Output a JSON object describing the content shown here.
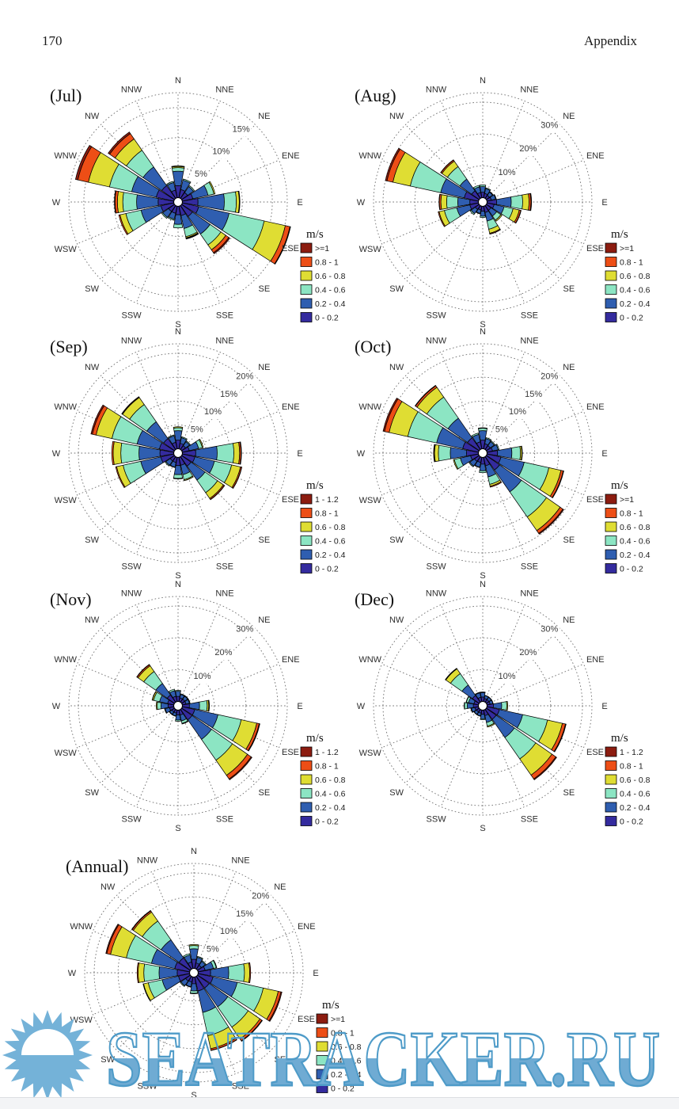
{
  "page": {
    "number": "170",
    "header_right": "Appendix"
  },
  "watermark": {
    "text": "SEATRACKER.RU",
    "fill_color": "#6fabd3",
    "outline_color": "#4e9bc8",
    "sun_color": "#74b2d8"
  },
  "legend_title": "m/s",
  "legend_side_label": "ESE",
  "speed_bin_colors_inner_to_outer": [
    "#342b9e",
    "#2f5eb0",
    "#8ce5c3",
    "#dfdd33",
    "#ed4e16",
    "#8c1c10"
  ],
  "chart_data": [
    {
      "id": "jul",
      "type": "windrose",
      "title": "(Jul)",
      "units": "m/s",
      "rings_pct": [
        5,
        10,
        15
      ],
      "ring_labels": [
        "5%",
        "10%",
        "15%"
      ],
      "outer_max_pct": 17.5,
      "legend_top_to_bottom": [
        ">=1",
        "0.8 - 1",
        "0.6 - 0.8",
        "0.4 - 0.6",
        "0.2 - 0.4",
        "0 - 0.2"
      ],
      "bins_inner_to_outer": [
        "0 - 0.2",
        "0.2 - 0.4",
        "0.4 - 0.6",
        "0.6 - 0.8",
        "0.8 - 1",
        ">=1"
      ],
      "directions": [
        "N",
        "NNE",
        "NE",
        "ENE",
        "E",
        "ESE",
        "SE",
        "SSE",
        "S",
        "SSW",
        "SW",
        "WSW",
        "W",
        "WNW",
        "NW",
        "NNW"
      ],
      "frequencies_pct": [
        [
          2.0,
          2.4,
          0.6,
          0.2,
          0.1,
          0
        ],
        [
          1.4,
          1.6,
          0.2,
          0,
          0,
          0
        ],
        [
          1.2,
          1.2,
          0.2,
          0,
          0,
          0
        ],
        [
          1.8,
          2.6,
          1.0,
          0.2,
          0,
          0
        ],
        [
          2.6,
          4.4,
          2.0,
          0.5,
          0.1,
          0
        ],
        [
          2.8,
          5.2,
          6.0,
          3.6,
          0.8,
          0.1
        ],
        [
          2.2,
          3.6,
          2.2,
          1.0,
          0.6,
          0.2
        ],
        [
          1.6,
          2.2,
          1.4,
          0.2,
          0.1,
          0.1
        ],
        [
          1.4,
          1.6,
          0.6,
          0,
          0,
          0
        ],
        [
          1.2,
          1.0,
          0.2,
          0,
          0,
          0
        ],
        [
          1.2,
          1.2,
          0.2,
          0,
          0,
          0
        ],
        [
          2.2,
          3.4,
          2.6,
          1.0,
          0.2,
          0
        ],
        [
          2.6,
          3.6,
          2.3,
          0.9,
          0.4,
          0.1
        ],
        [
          3.0,
          4.2,
          3.8,
          3.6,
          1.8,
          0.4
        ],
        [
          2.6,
          3.8,
          3.4,
          2.3,
          1.1,
          0.3
        ],
        [
          1.3,
          1.3,
          0.2,
          0,
          0,
          0
        ]
      ]
    },
    {
      "id": "aug",
      "type": "windrose",
      "title": "(Aug)",
      "units": "m/s",
      "rings_pct": [
        10,
        20,
        30
      ],
      "ring_labels": [
        "10%",
        "20%",
        "30%"
      ],
      "outer_max_pct": 33,
      "legend_top_to_bottom": [
        ">=1",
        "0.8 - 1",
        "0.6 - 0.8",
        "0.4 - 0.6",
        "0.2 - 0.4",
        "0 - 0.2"
      ],
      "bins_inner_to_outer": [
        "0 - 0.2",
        "0.2 - 0.4",
        "0.4 - 0.6",
        "0.6 - 0.8",
        "0.8 - 1",
        ">=1"
      ],
      "directions": [
        "N",
        "NNE",
        "NE",
        "ENE",
        "E",
        "ESE",
        "SE",
        "SSE",
        "S",
        "SSW",
        "SW",
        "WSW",
        "W",
        "WNW",
        "NW",
        "NNW"
      ],
      "frequencies_pct": [
        [
          1.7,
          1.8,
          0.5,
          0,
          0,
          0
        ],
        [
          1.4,
          1.5,
          0.3,
          0,
          0,
          0
        ],
        [
          1.2,
          1.2,
          0.2,
          0,
          0,
          0
        ],
        [
          1.4,
          1.4,
          0.2,
          0,
          0,
          0
        ],
        [
          3.0,
          4.6,
          3.6,
          2.0,
          0.6,
          0.2
        ],
        [
          2.3,
          3.2,
          2.9,
          2.0,
          0.5,
          0.1
        ],
        [
          1.8,
          2.2,
          1.6,
          0.4,
          0,
          0
        ],
        [
          2.0,
          2.8,
          2.6,
          1.3,
          0.25,
          0.05
        ],
        [
          1.5,
          1.6,
          0.4,
          0,
          0,
          0
        ],
        [
          1.2,
          1.1,
          0.2,
          0,
          0,
          0
        ],
        [
          1.5,
          1.6,
          0.4,
          0,
          0,
          0
        ],
        [
          2.8,
          4.2,
          4.0,
          1.7,
          0.3,
          0
        ],
        [
          2.7,
          3.8,
          3.5,
          1.8,
          0.5,
          0.1
        ],
        [
          4.6,
          7.6,
          9.8,
          5.6,
          1.9,
          0.5
        ],
        [
          2.9,
          4.5,
          4.8,
          2.1,
          0.4,
          0.1
        ],
        [
          1.7,
          1.8,
          0.5,
          0,
          0,
          0
        ]
      ]
    },
    {
      "id": "sep",
      "type": "windrose",
      "title": "(Sep)",
      "units": "m/s",
      "rings_pct": [
        5,
        10,
        15,
        20
      ],
      "ring_labels": [
        "5%",
        "10%",
        "15%",
        "20%"
      ],
      "outer_max_pct": 22,
      "legend_top_to_bottom": [
        "1 - 1.2",
        "0.8 - 1",
        "0.6 - 0.8",
        "0.4 - 0.6",
        "0.2 - 0.4",
        "0 - 0.2"
      ],
      "bins_inner_to_outer": [
        "0 - 0.2",
        "0.2 - 0.4",
        "0.4 - 0.6",
        "0.6 - 0.8",
        "0.8 - 1",
        "1 - 1.2"
      ],
      "directions": [
        "N",
        "NNE",
        "NE",
        "ENE",
        "E",
        "ESE",
        "SE",
        "SSE",
        "S",
        "SSW",
        "SW",
        "WSW",
        "W",
        "WNW",
        "NW",
        "NNW"
      ],
      "frequencies_pct": [
        [
          1.8,
          2.0,
          0.6,
          0.2,
          0,
          0
        ],
        [
          1.2,
          1.2,
          0.2,
          0,
          0,
          0
        ],
        [
          1.0,
          1.0,
          0.2,
          0,
          0,
          0
        ],
        [
          1.5,
          2.0,
          0.8,
          0.2,
          0,
          0
        ],
        [
          2.8,
          4.5,
          3.5,
          1.2,
          0.3,
          0.1
        ],
        [
          2.7,
          4.2,
          3.7,
          1.9,
          0.25,
          0.05
        ],
        [
          2.4,
          3.6,
          3.2,
          1.5,
          0.25,
          0.05
        ],
        [
          1.7,
          2.0,
          1.1,
          0.2,
          0,
          0
        ],
        [
          1.7,
          1.9,
          0.8,
          0.1,
          0,
          0
        ],
        [
          1.1,
          1.0,
          0.1,
          0,
          0,
          0
        ],
        [
          1.1,
          1.1,
          0.2,
          0,
          0,
          0
        ],
        [
          2.8,
          4.3,
          3.8,
          1.4,
          0.2,
          0
        ],
        [
          2.9,
          4.4,
          3.8,
          1.6,
          0.3,
          0
        ],
        [
          3.1,
          4.8,
          5.4,
          3.4,
          0.8,
          0.3
        ],
        [
          2.8,
          4.3,
          4.4,
          1.8,
          0.15,
          0.05
        ],
        [
          1.4,
          1.4,
          0.2,
          0,
          0,
          0
        ]
      ]
    },
    {
      "id": "oct",
      "type": "windrose",
      "title": "(Oct)",
      "units": "m/s",
      "rings_pct": [
        5,
        10,
        15,
        20
      ],
      "ring_labels": [
        "5%",
        "10%",
        "15%",
        "20%"
      ],
      "outer_max_pct": 22,
      "legend_top_to_bottom": [
        ">=1",
        "0.8 - 1",
        "0.6 - 0.8",
        "0.4 - 0.6",
        "0.2 - 0.4",
        "0 - 0.2"
      ],
      "bins_inner_to_outer": [
        "0 - 0.2",
        "0.2 - 0.4",
        "0.4 - 0.6",
        "0.6 - 0.8",
        "0.8 - 1",
        ">=1"
      ],
      "directions": [
        "N",
        "NNE",
        "NE",
        "ENE",
        "E",
        "ESE",
        "SE",
        "SSE",
        "S",
        "SSW",
        "SW",
        "WSW",
        "W",
        "WNW",
        "NW",
        "NNW"
      ],
      "frequencies_pct": [
        [
          1.8,
          2.0,
          0.5,
          0.1,
          0,
          0
        ],
        [
          1.1,
          1.1,
          0.2,
          0,
          0,
          0
        ],
        [
          1.0,
          1.0,
          0.2,
          0,
          0,
          0
        ],
        [
          1.2,
          1.2,
          0.2,
          0,
          0,
          0
        ],
        [
          2.2,
          3.0,
          1.8,
          0.3,
          0.1,
          0
        ],
        [
          3.0,
          5.0,
          5.3,
          2.6,
          0.5,
          0.1
        ],
        [
          3.4,
          5.6,
          6.4,
          3.5,
          0.7,
          0.2
        ],
        [
          1.8,
          2.4,
          1.6,
          0.4,
          0.2,
          0
        ],
        [
          1.4,
          1.4,
          0.4,
          0,
          0,
          0
        ],
        [
          1.1,
          1.0,
          0.1,
          0,
          0,
          0
        ],
        [
          1.2,
          1.2,
          0.2,
          0,
          0,
          0
        ],
        [
          1.7,
          2.2,
          1.3,
          0.2,
          0,
          0
        ],
        [
          2.5,
          3.4,
          2.5,
          0.8,
          0.15,
          0.05
        ],
        [
          3.4,
          5.6,
          6.2,
          4.0,
          1.0,
          0.3
        ],
        [
          3.0,
          5.0,
          5.4,
          2.5,
          0.4,
          0.1
        ],
        [
          1.5,
          1.6,
          0.3,
          0,
          0,
          0
        ]
      ]
    },
    {
      "id": "nov",
      "type": "windrose",
      "title": "(Nov)",
      "units": "m/s",
      "rings_pct": [
        10,
        20,
        30
      ],
      "ring_labels": [
        "10%",
        "20%",
        "30%"
      ],
      "outer_max_pct": 33,
      "legend_top_to_bottom": [
        "1 - 1.2",
        "0.8 - 1",
        "0.6 - 0.8",
        "0.4 - 0.6",
        "0.2 - 0.4",
        "0 - 0.2"
      ],
      "bins_inner_to_outer": [
        "0 - 0.2",
        "0.2 - 0.4",
        "0.4 - 0.6",
        "0.6 - 0.8",
        "0.8 - 1",
        "1 - 1.2"
      ],
      "directions": [
        "N",
        "NNE",
        "NE",
        "ENE",
        "E",
        "ESE",
        "SE",
        "SSE",
        "S",
        "SSW",
        "SW",
        "WSW",
        "W",
        "WNW",
        "NW",
        "NNW"
      ],
      "frequencies_pct": [
        [
          1.6,
          1.6,
          0.3,
          0,
          0,
          0
        ],
        [
          1.2,
          1.1,
          0.2,
          0,
          0,
          0
        ],
        [
          1.2,
          1.1,
          0.2,
          0,
          0,
          0
        ],
        [
          1.2,
          1.1,
          0.2,
          0,
          0,
          0
        ],
        [
          2.2,
          3.2,
          2.4,
          0.5,
          0.15,
          0.05
        ],
        [
          4.0,
          7.5,
          7.5,
          5.0,
          0.8,
          0.2
        ],
        [
          4.0,
          7.5,
          8.0,
          5.8,
          1.4,
          0.3
        ],
        [
          1.6,
          1.9,
          0.8,
          0.2,
          0,
          0
        ],
        [
          1.5,
          1.6,
          0.4,
          0,
          0,
          0
        ],
        [
          1.0,
          0.9,
          0.1,
          0,
          0,
          0
        ],
        [
          1.0,
          0.9,
          0.1,
          0,
          0,
          0
        ],
        [
          1.4,
          1.4,
          0.2,
          0,
          0,
          0
        ],
        [
          1.8,
          2.2,
          1.2,
          0.3,
          0,
          0
        ],
        [
          2.0,
          2.6,
          1.9,
          0.4,
          0.1,
          0
        ],
        [
          2.8,
          4.4,
          4.6,
          2.2,
          0.4,
          0.1
        ],
        [
          1.7,
          1.8,
          0.5,
          0,
          0,
          0
        ]
      ]
    },
    {
      "id": "dec",
      "type": "windrose",
      "title": "(Dec)",
      "units": "m/s",
      "rings_pct": [
        10,
        20,
        30
      ],
      "ring_labels": [
        "10%",
        "20%",
        "30%"
      ],
      "outer_max_pct": 33,
      "legend_top_to_bottom": [
        "1 - 1.2",
        "0.8 - 1",
        "0.6 - 0.8",
        "0.4 - 0.6",
        "0.2 - 0.4",
        "0 - 0.2"
      ],
      "bins_inner_to_outer": [
        "0 - 0.2",
        "0.2 - 0.4",
        "0.4 - 0.6",
        "0.6 - 0.8",
        "0.8 - 1",
        "1 - 1.2"
      ],
      "directions": [
        "N",
        "NNE",
        "NE",
        "ENE",
        "E",
        "ESE",
        "SE",
        "SSE",
        "S",
        "SSW",
        "SW",
        "WSW",
        "W",
        "WNW",
        "NW",
        "NNW"
      ],
      "frequencies_pct": [
        [
          1.4,
          1.4,
          0.2,
          0,
          0,
          0
        ],
        [
          1.0,
          0.9,
          0.1,
          0,
          0,
          0
        ],
        [
          1.0,
          0.9,
          0.1,
          0,
          0,
          0
        ],
        [
          1.0,
          0.9,
          0.1,
          0,
          0,
          0
        ],
        [
          2.0,
          2.6,
          1.6,
          0.3,
          0,
          0
        ],
        [
          4.0,
          7.5,
          8.0,
          4.8,
          1.0,
          0.2
        ],
        [
          3.8,
          7.0,
          8.2,
          6.2,
          1.5,
          0.3
        ],
        [
          1.8,
          2.2,
          1.2,
          0.3,
          0,
          0
        ],
        [
          1.3,
          1.4,
          0.3,
          0,
          0,
          0
        ],
        [
          1.0,
          0.9,
          0.1,
          0,
          0,
          0
        ],
        [
          1.0,
          0.9,
          0.1,
          0,
          0,
          0
        ],
        [
          1.2,
          1.1,
          0.2,
          0,
          0,
          0
        ],
        [
          1.6,
          1.9,
          0.9,
          0.1,
          0,
          0
        ],
        [
          1.5,
          1.7,
          0.7,
          0.1,
          0,
          0
        ],
        [
          2.6,
          4.0,
          4.4,
          1.8,
          0.15,
          0.05
        ],
        [
          1.4,
          1.4,
          0.2,
          0,
          0,
          0
        ]
      ]
    },
    {
      "id": "annual",
      "type": "windrose",
      "title": "(Annual)",
      "units": "m/s",
      "rings_pct": [
        5,
        10,
        15,
        20
      ],
      "ring_labels": [
        "5%",
        "10%",
        "15%",
        "20%"
      ],
      "outer_max_pct": 22,
      "legend_top_to_bottom": [
        ">=1",
        "0.8 - 1",
        "0.6 - 0.8",
        "0.4 - 0.6",
        "0.2 - 0.4",
        "0 - 0.2"
      ],
      "bins_inner_to_outer": [
        "0 - 0.2",
        "0.2 - 0.4",
        "0.4 - 0.6",
        "0.6 - 0.8",
        "0.8 - 1",
        ">=1"
      ],
      "directions": [
        "N",
        "NNE",
        "NE",
        "ENE",
        "E",
        "ESE",
        "SE",
        "SSE",
        "S",
        "SSW",
        "SW",
        "WSW",
        "W",
        "WNW",
        "NW",
        "NNW"
      ],
      "frequencies_pct": [
        [
          1.9,
          2.2,
          0.7,
          0.2,
          0,
          0
        ],
        [
          1.2,
          1.2,
          0.2,
          0,
          0,
          0
        ],
        [
          1.0,
          1.0,
          0.2,
          0,
          0,
          0
        ],
        [
          1.5,
          1.8,
          0.6,
          0.1,
          0,
          0
        ],
        [
          2.6,
          3.8,
          3.3,
          1.1,
          0.2,
          0
        ],
        [
          3.2,
          5.2,
          5.6,
          3.2,
          0.6,
          0.2
        ],
        [
          3.0,
          4.8,
          5.2,
          3.0,
          0.5,
          0.1
        ],
        [
          3.0,
          4.6,
          5.0,
          2.8,
          0.35,
          0.05
        ],
        [
          1.4,
          1.5,
          0.5,
          0.1,
          0,
          0
        ],
        [
          1.1,
          1.0,
          0.1,
          0,
          0,
          0
        ],
        [
          1.2,
          1.2,
          0.2,
          0,
          0,
          0
        ],
        [
          2.4,
          3.5,
          3.0,
          1.0,
          0.1,
          0
        ],
        [
          2.6,
          3.8,
          3.2,
          1.2,
          0.2,
          0
        ],
        [
          3.2,
          5.0,
          5.4,
          3.4,
          0.8,
          0.2
        ],
        [
          2.9,
          4.6,
          4.8,
          2.3,
          0.3,
          0.1
        ],
        [
          1.4,
          1.5,
          0.3,
          0,
          0,
          0
        ]
      ]
    }
  ]
}
